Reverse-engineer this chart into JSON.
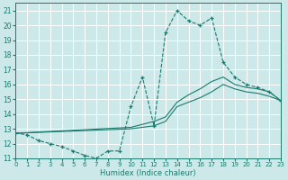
{
  "xlabel": "Humidex (Indice chaleur)",
  "xlim": [
    0,
    23
  ],
  "ylim": [
    11,
    21.5
  ],
  "yticks": [
    11,
    12,
    13,
    14,
    15,
    16,
    17,
    18,
    19,
    20,
    21
  ],
  "xticks": [
    0,
    1,
    2,
    3,
    4,
    5,
    6,
    7,
    8,
    9,
    10,
    11,
    12,
    13,
    14,
    15,
    16,
    17,
    18,
    19,
    20,
    21,
    22,
    23
  ],
  "bg_color": "#cce8e8",
  "grid_color": "#ffffff",
  "line_color": "#1a7a6e",
  "line_main": {
    "x": [
      0,
      1,
      2,
      3,
      4,
      5,
      6,
      7,
      8,
      9,
      10,
      11,
      12,
      13,
      14,
      15,
      16,
      17,
      18,
      19,
      20,
      21,
      22,
      23
    ],
    "y": [
      12.7,
      12.6,
      12.2,
      12.0,
      11.8,
      11.5,
      11.2,
      11.0,
      11.5,
      11.5,
      14.5,
      16.5,
      13.2,
      19.5,
      21.0,
      20.3,
      20.0,
      20.5,
      17.5,
      16.5,
      16.0,
      15.8,
      15.5,
      14.9
    ]
  },
  "line_upper": {
    "x": [
      0,
      23
    ],
    "y": [
      12.7,
      14.9
    ]
  },
  "line_lower": {
    "x": [
      0,
      23
    ],
    "y": [
      12.7,
      14.9
    ]
  },
  "line_smooth1": {
    "x": [
      0,
      10,
      11,
      12,
      13,
      14,
      15,
      16,
      17,
      18,
      19,
      20,
      21,
      22,
      23
    ],
    "y": [
      12.7,
      13.1,
      13.3,
      13.5,
      13.8,
      14.8,
      15.3,
      15.7,
      16.2,
      16.5,
      16.0,
      15.8,
      15.7,
      15.5,
      14.9
    ]
  },
  "line_smooth2": {
    "x": [
      0,
      10,
      11,
      12,
      13,
      14,
      15,
      16,
      17,
      18,
      19,
      20,
      21,
      22,
      23
    ],
    "y": [
      12.7,
      13.0,
      13.1,
      13.2,
      13.5,
      14.5,
      14.8,
      15.1,
      15.5,
      16.0,
      15.7,
      15.5,
      15.4,
      15.2,
      14.9
    ]
  }
}
